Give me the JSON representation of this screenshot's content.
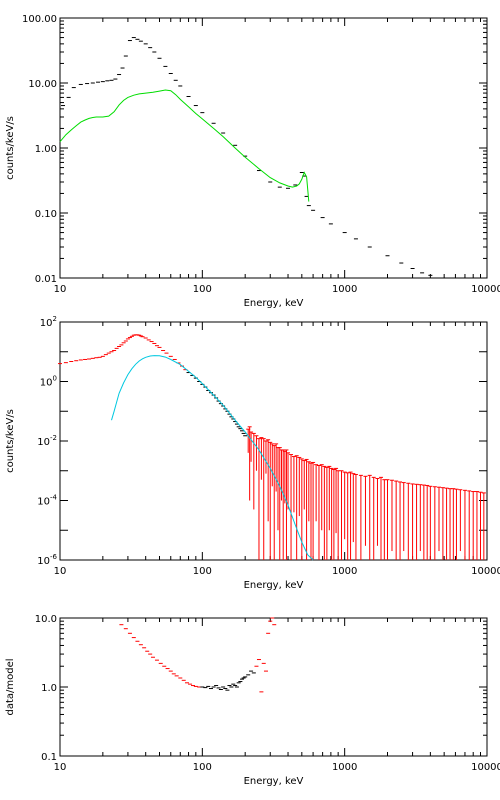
{
  "chart_data": [
    {
      "type": "scatter",
      "xscale": "log",
      "yscale": "log",
      "xlim": [
        10,
        10000
      ],
      "ylim": [
        0.01,
        100
      ],
      "xlabel": "Energy, keV",
      "ylabel": "counts/keV/s",
      "xticks": [
        {
          "v": 10,
          "t": "10"
        },
        {
          "v": 100,
          "t": "100"
        },
        {
          "v": 1000,
          "t": "1000"
        },
        {
          "v": 10000,
          "t": "10000"
        }
      ],
      "yticks": [
        {
          "v": 0.01,
          "t": "0.01"
        },
        {
          "v": 0.1,
          "t": "0.10"
        },
        {
          "v": 1,
          "t": "1.00"
        },
        {
          "v": 10,
          "t": "10.00"
        },
        {
          "v": 100,
          "t": "100.00"
        }
      ],
      "series": [
        {
          "kind": "points",
          "color": "#000000",
          "x": [
            10.5,
            11.5,
            12.5,
            14,
            15.5,
            17,
            18.5,
            20,
            21.5,
            23,
            24.5,
            26,
            27.5,
            29,
            31,
            33,
            35,
            37,
            40,
            43,
            46,
            50,
            55,
            60,
            65,
            70,
            80,
            90,
            100,
            120,
            140,
            170,
            200,
            250,
            300,
            350,
            400,
            450,
            500,
            520,
            540,
            560,
            600,
            700,
            800,
            1000,
            1200,
            1500,
            2000,
            2500,
            3000,
            3500,
            4000,
            4500,
            5000
          ],
          "y": [
            4.5,
            6.0,
            8.5,
            9.5,
            9.8,
            10.0,
            10.3,
            10.5,
            10.8,
            11.0,
            11.5,
            13.5,
            17,
            26,
            45,
            50,
            47,
            44,
            40,
            35,
            30,
            24,
            18,
            14,
            11,
            9.0,
            6.2,
            4.5,
            3.5,
            2.4,
            1.7,
            1.1,
            0.75,
            0.45,
            0.3,
            0.25,
            0.24,
            0.27,
            0.42,
            0.37,
            0.18,
            0.13,
            0.11,
            0.085,
            0.068,
            0.05,
            0.04,
            0.03,
            0.022,
            0.017,
            0.014,
            0.012,
            0.011,
            0.0095,
            0.0085
          ]
        },
        {
          "kind": "line",
          "color": "#00dd00",
          "x": [
            10,
            11,
            12,
            13,
            14,
            15,
            16,
            17,
            18,
            19,
            20,
            22,
            24,
            26,
            28,
            30,
            33,
            36,
            40,
            45,
            50,
            55,
            60,
            65,
            70,
            80,
            90,
            100,
            120,
            140,
            170,
            200,
            250,
            300,
            350,
            400,
            430,
            460,
            480,
            500,
            520,
            540,
            560
          ],
          "y": [
            1.25,
            1.6,
            1.9,
            2.2,
            2.5,
            2.7,
            2.85,
            2.95,
            3.0,
            3.0,
            3.0,
            3.1,
            3.6,
            4.6,
            5.4,
            6.0,
            6.5,
            6.8,
            7.0,
            7.2,
            7.5,
            7.8,
            7.6,
            6.6,
            5.6,
            4.3,
            3.4,
            2.8,
            2.0,
            1.5,
            1.0,
            0.72,
            0.48,
            0.35,
            0.29,
            0.26,
            0.25,
            0.26,
            0.28,
            0.33,
            0.42,
            0.36,
            0.15
          ]
        }
      ]
    },
    {
      "type": "scatter",
      "xscale": "log",
      "yscale": "log",
      "xlim": [
        10,
        10000
      ],
      "ylim": [
        1e-06,
        100
      ],
      "xlabel": "Energy, keV",
      "ylabel": "counts/keV/s",
      "xticks": [
        {
          "v": 10,
          "t": "10"
        },
        {
          "v": 100,
          "t": "100"
        },
        {
          "v": 1000,
          "t": "1000"
        },
        {
          "v": 10000,
          "t": "10000"
        }
      ],
      "yticks": [
        {
          "v": 1e-06,
          "b": "10",
          "e": "-6"
        },
        {
          "v": 0.0001,
          "b": "10",
          "e": "-4"
        },
        {
          "v": 0.01,
          "b": "10",
          "e": "-2"
        },
        {
          "v": 1,
          "b": "10",
          "e": "0"
        },
        {
          "v": 100,
          "b": "10",
          "e": "2"
        }
      ],
      "series": [
        {
          "kind": "points",
          "color": "#ff0000",
          "x": [
            10,
            11,
            12,
            13,
            14,
            15,
            16,
            17,
            18,
            19,
            20,
            21,
            22,
            23,
            24,
            25,
            26,
            27,
            28,
            29,
            30,
            31,
            32,
            33,
            34,
            35,
            36,
            37,
            38,
            40,
            42,
            44,
            46,
            48,
            50,
            53,
            56,
            60,
            64,
            68,
            72,
            76
          ],
          "y": [
            4,
            4.3,
            4.7,
            5.0,
            5.3,
            5.5,
            5.7,
            6.0,
            6.3,
            6.5,
            7,
            8,
            9,
            10,
            11,
            13,
            15,
            17,
            20,
            23,
            27,
            30,
            33,
            36,
            37,
            37,
            36,
            34,
            32,
            29,
            25,
            22,
            19,
            16,
            14,
            11,
            9,
            7,
            5.5,
            4.2,
            3.3,
            2.5
          ]
        },
        {
          "kind": "points",
          "color": "#000000",
          "x": [
            80,
            85,
            90,
            95,
            100,
            105,
            110,
            115,
            120,
            125,
            130,
            135,
            140,
            145,
            150,
            155,
            160,
            165,
            170,
            175,
            180,
            185,
            190,
            195,
            200
          ],
          "y": [
            2.0,
            1.6,
            1.3,
            1.0,
            0.8,
            0.65,
            0.5,
            0.42,
            0.35,
            0.28,
            0.22,
            0.18,
            0.15,
            0.12,
            0.1,
            0.08,
            0.065,
            0.055,
            0.045,
            0.037,
            0.03,
            0.026,
            0.022,
            0.018,
            0.015
          ]
        },
        {
          "kind": "noise",
          "color": "#ff0000",
          "x": [
            210,
            215,
            220,
            230,
            240,
            250,
            260,
            270,
            280,
            290,
            300,
            310,
            320,
            330,
            340,
            350,
            360,
            370,
            380,
            390,
            400,
            420,
            440,
            460,
            480,
            500,
            520,
            540,
            560,
            580,
            600,
            630,
            660,
            690,
            720,
            750,
            780,
            810,
            840,
            870,
            900,
            950,
            1000,
            1050,
            1100,
            1150,
            1200,
            1300,
            1400,
            1500,
            1600,
            1700,
            1800,
            1900,
            2000,
            2150,
            2300,
            2450,
            2600,
            2800,
            3000,
            3200,
            3400,
            3600,
            3800,
            4000,
            4300,
            4600,
            4900,
            5200,
            5500,
            5800,
            6100,
            6500,
            7000,
            7500,
            8000,
            8500,
            9000,
            9500
          ],
          "hi": [
            0.025,
            0.03,
            0.02,
            0.018,
            0.015,
            0.012,
            0.013,
            0.012,
            0.01,
            0.011,
            0.009,
            0.008,
            0.007,
            0.008,
            0.006,
            0.006,
            0.005,
            0.005,
            0.0045,
            0.005,
            0.004,
            0.0035,
            0.003,
            0.0032,
            0.0028,
            0.0025,
            0.0022,
            0.0024,
            0.002,
            0.0018,
            0.0019,
            0.0016,
            0.0015,
            0.0016,
            0.0014,
            0.0013,
            0.0014,
            0.0012,
            0.0011,
            0.0012,
            0.001,
            0.001,
            0.0009,
            0.00085,
            0.0009,
            0.0008,
            0.00075,
            0.0007,
            0.00065,
            0.0007,
            0.0006,
            0.00055,
            0.0006,
            0.0005,
            0.0005,
            0.00048,
            0.00045,
            0.00042,
            0.0004,
            0.00038,
            0.00036,
            0.00035,
            0.00034,
            0.00033,
            0.00032,
            0.0003,
            0.00029,
            0.00028,
            0.00027,
            0.00026,
            0.00025,
            0.00025,
            0.00024,
            0.00023,
            0.00022,
            0.00021,
            0.0002,
            0.0002,
            0.00019,
            0.00018
          ],
          "lo": [
            0.004,
            0.0001,
            0.002,
            5e-05,
            0.001,
            1e-06,
            0.0005,
            1e-06,
            0.0008,
            2e-05,
            1e-06,
            0.0003,
            1e-06,
            0.0002,
            1e-05,
            1e-06,
            0.0001,
            1e-06,
            8e-05,
            1e-06,
            5e-05,
            1e-06,
            4e-05,
            1e-06,
            3e-05,
            1e-06,
            5e-05,
            1e-06,
            2e-05,
            1e-06,
            1e-06,
            2e-05,
            1e-06,
            1e-05,
            1e-06,
            1e-06,
            1e-05,
            1e-06,
            1e-06,
            8e-06,
            1e-06,
            1e-06,
            5e-06,
            1e-06,
            1e-06,
            4e-06,
            1e-06,
            1e-06,
            3e-06,
            1e-06,
            1e-06,
            3e-06,
            1e-06,
            1e-06,
            1e-06,
            2e-06,
            1e-06,
            1e-06,
            2e-06,
            1e-06,
            1e-06,
            1e-06,
            2e-06,
            1e-06,
            1e-06,
            1e-06,
            1e-06,
            2e-06,
            1e-06,
            1e-06,
            1e-06,
            1e-06,
            1e-06,
            2e-06,
            1e-06,
            1e-06,
            1e-06,
            1e-06,
            1e-06,
            1e-06
          ]
        },
        {
          "kind": "line",
          "color": "#00c8e0",
          "x": [
            23,
            24,
            25,
            26,
            28,
            30,
            32,
            34,
            36,
            38,
            40,
            43,
            46,
            50,
            55,
            60,
            70,
            80,
            90,
            100,
            120,
            140,
            170,
            200,
            250,
            300,
            350,
            400,
            450,
            500,
            550,
            600
          ],
          "y": [
            0.05,
            0.1,
            0.2,
            0.4,
            0.9,
            1.7,
            2.7,
            3.8,
            4.9,
            5.8,
            6.5,
            7.2,
            7.4,
            7.3,
            6.6,
            5.5,
            3.7,
            2.2,
            1.4,
            0.85,
            0.35,
            0.16,
            0.05,
            0.02,
            0.005,
            0.0012,
            0.0003,
            7e-05,
            1.5e-05,
            4e-06,
            1.5e-06,
            1e-06
          ]
        }
      ]
    },
    {
      "type": "scatter",
      "xscale": "log",
      "yscale": "log",
      "xlim": [
        10,
        10000
      ],
      "ylim": [
        0.1,
        10
      ],
      "xlabel": "Energy, keV",
      "ylabel": "data/model",
      "xticks": [
        {
          "v": 10,
          "t": "10"
        },
        {
          "v": 100,
          "t": "100"
        },
        {
          "v": 1000,
          "t": "1000"
        },
        {
          "v": 10000,
          "t": "10000"
        }
      ],
      "yticks": [
        {
          "v": 0.1,
          "t": "0.1"
        },
        {
          "v": 1,
          "t": "1.0"
        },
        {
          "v": 10,
          "t": "10.0"
        }
      ],
      "series": [
        {
          "kind": "points",
          "color": "#ff0000",
          "x": [
            27,
            29,
            31,
            33,
            35,
            37,
            39,
            41,
            43,
            45,
            48,
            51,
            54,
            57,
            60,
            63,
            66,
            70,
            74,
            78,
            82,
            86,
            90,
            95
          ],
          "y": [
            8.0,
            7.0,
            6.0,
            5.2,
            4.6,
            4.1,
            3.7,
            3.3,
            3.0,
            2.7,
            2.45,
            2.2,
            2.0,
            1.85,
            1.7,
            1.55,
            1.45,
            1.35,
            1.25,
            1.15,
            1.1,
            1.05,
            1.02,
            1.0
          ]
        },
        {
          "kind": "points",
          "color": "#000000",
          "x": [
            100,
            105,
            110,
            115,
            120,
            125,
            130,
            135,
            140,
            145,
            150,
            155,
            160,
            165,
            170,
            175,
            180,
            185,
            190,
            195,
            200,
            210,
            220,
            230
          ],
          "y": [
            1.0,
            0.98,
            1.02,
            0.95,
            1.0,
            1.05,
            0.97,
            0.92,
            1.0,
            0.95,
            0.9,
            1.05,
            1.0,
            1.1,
            1.05,
            1.0,
            1.15,
            1.2,
            1.3,
            1.35,
            1.4,
            1.5,
            1.7,
            1.6
          ]
        },
        {
          "kind": "points",
          "color": "#ff0000",
          "x": [
            240,
            250,
            260,
            270,
            280,
            290,
            300,
            310,
            320
          ],
          "y": [
            2.0,
            2.5,
            0.85,
            2.2,
            1.7,
            6.0,
            9.0,
            10.0,
            8.0
          ]
        }
      ]
    }
  ]
}
